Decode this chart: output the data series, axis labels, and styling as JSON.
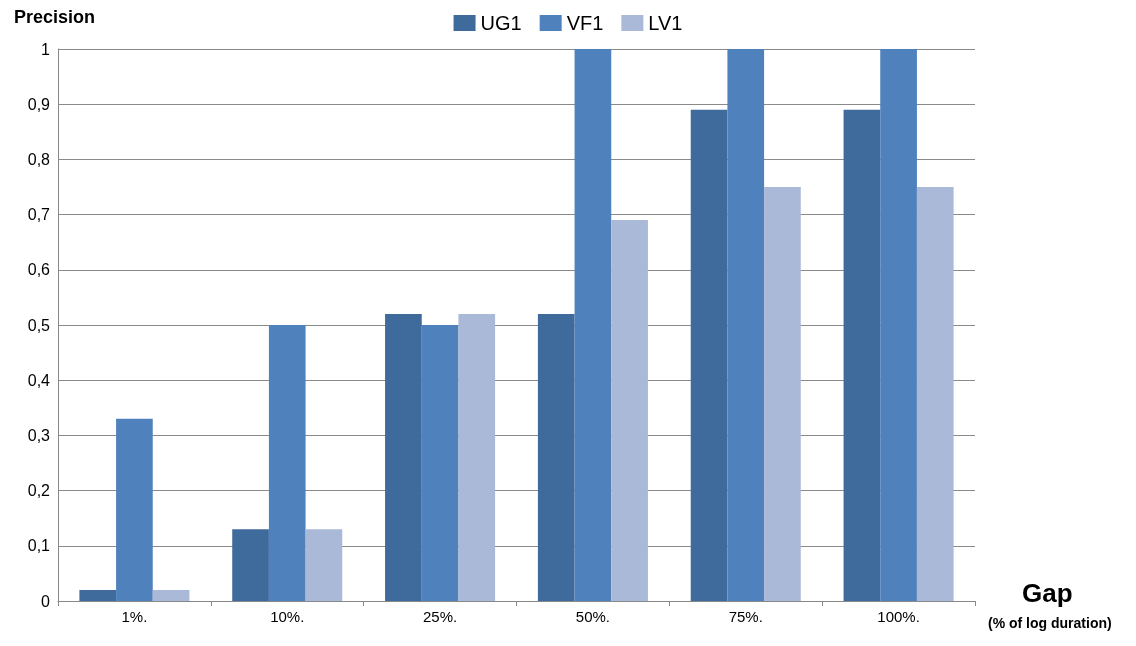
{
  "chart_data": {
    "type": "bar",
    "ylabel": "Precision",
    "xlabel": "Gap",
    "annotations": [
      "(% of log duration)"
    ],
    "categories": [
      "1%.",
      "10%.",
      "25%.",
      "50%.",
      "75%.",
      "100%."
    ],
    "series": [
      {
        "name": "UG1",
        "color": "#3f6a9c",
        "values": [
          0.02,
          0.13,
          0.52,
          0.52,
          0.89,
          0.89
        ]
      },
      {
        "name": "VF1",
        "color": "#4f81bd",
        "values": [
          0.33,
          0.5,
          0.5,
          1,
          1,
          1
        ]
      },
      {
        "name": "LV1",
        "color": "#aab9d8",
        "values": [
          0.02,
          0.13,
          0.52,
          0.69,
          0.75,
          0.75
        ]
      }
    ],
    "ylim": [
      0,
      1
    ],
    "yticks": [
      0,
      {
        "value": 0.1,
        "label": "0,1"
      },
      {
        "value": 0.2,
        "label": "0,2"
      },
      {
        "value": 0.3,
        "label": "0,3"
      },
      {
        "value": 0.4,
        "label": "0,4"
      },
      {
        "value": 0.5,
        "label": "0,5"
      },
      {
        "value": 0.6,
        "label": "0,6"
      },
      {
        "value": 0.7,
        "label": "0,7"
      },
      {
        "value": 0.8,
        "label": "0,8"
      },
      {
        "value": 0.9,
        "label": "0,9"
      },
      1
    ],
    "grid": "y",
    "legend": "top"
  }
}
